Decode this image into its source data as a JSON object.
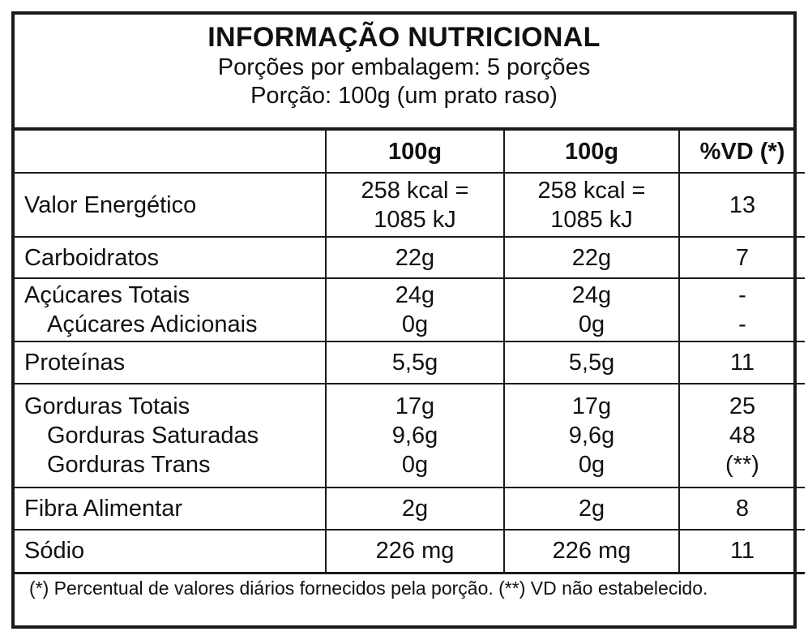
{
  "title": "INFORMAÇÃO NUTRICIONAL",
  "servings_per_package": "Porções por embalagem: 5 porções",
  "serving_size": "Porção: 100g (um prato raso)",
  "columns": [
    "",
    "100g",
    "100g",
    "%VD (*)"
  ],
  "rows": {
    "energy": {
      "label": "Valor Energético",
      "c1a": "258 kcal =",
      "c1b": "1085 kJ",
      "c2a": "258 kcal =",
      "c2b": "1085 kJ",
      "vd": "13"
    },
    "carbs": {
      "label": "Carboidratos",
      "c1": "22g",
      "c2": "22g",
      "vd": "7"
    },
    "sugars_total": {
      "label": "Açúcares Totais",
      "c1": "24g",
      "c2": "24g",
      "vd": "-"
    },
    "sugars_added": {
      "label": "Açúcares Adicionais",
      "c1": "0g",
      "c2": "0g",
      "vd": "-"
    },
    "protein": {
      "label": "Proteínas",
      "c1": "5,5g",
      "c2": "5,5g",
      "vd": "11"
    },
    "fat_total": {
      "label": "Gorduras Totais",
      "c1": "17g",
      "c2": "17g",
      "vd": "25"
    },
    "fat_sat": {
      "label": "Gorduras Saturadas",
      "c1": "9,6g",
      "c2": "9,6g",
      "vd": "48"
    },
    "fat_trans": {
      "label": "Gorduras Trans",
      "c1": "0g",
      "c2": "0g",
      "vd": "(**)"
    },
    "fiber": {
      "label": "Fibra Alimentar",
      "c1": "2g",
      "c2": "2g",
      "vd": "8"
    },
    "sodium": {
      "label": "Sódio",
      "c1": "226 mg",
      "c2": "226 mg",
      "vd": "11"
    }
  },
  "footnote": "(*) Percentual de valores diários fornecidos pela porção. (**) VD não estabelecido."
}
